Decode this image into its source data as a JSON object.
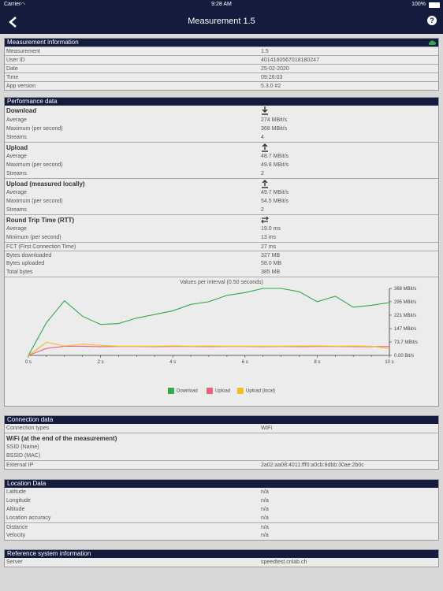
{
  "status_bar": {
    "carrier": "Carrier",
    "time": "9:28 AM",
    "battery": "100%"
  },
  "nav": {
    "title": "Measurement 1.5",
    "help": "?"
  },
  "measurement_info": {
    "title": "Measurement information",
    "rows": [
      {
        "k": "Measurement",
        "v": "1.5"
      },
      {
        "k": "User ID",
        "v": "4014160567018180247"
      },
      {
        "k": "Date",
        "v": "25-02-2020"
      },
      {
        "k": "Time",
        "v": "09:26:03"
      },
      {
        "k": "App version",
        "v": "5.3.0 #2"
      }
    ]
  },
  "performance": {
    "title": "Performance data",
    "download": {
      "title": "Download",
      "rows": [
        {
          "k": "Average",
          "v": "274 MBit/s"
        },
        {
          "k": "Maximum (per second)",
          "v": "368 MBit/s"
        },
        {
          "k": "Streams",
          "v": "4"
        }
      ]
    },
    "upload": {
      "title": "Upload",
      "rows": [
        {
          "k": "Average",
          "v": "48.7 MBit/s"
        },
        {
          "k": "Maximum (per second)",
          "v": "49.8 MBit/s"
        },
        {
          "k": "Streams",
          "v": "2"
        }
      ]
    },
    "upload_local": {
      "title": "Upload (measured locally)",
      "rows": [
        {
          "k": "Average",
          "v": "49.7 MBit/s"
        },
        {
          "k": "Maximum (per second)",
          "v": "54.5 MBit/s"
        },
        {
          "k": "Streams",
          "v": "2"
        }
      ]
    },
    "rtt": {
      "title": "Round Trip Time (RTT)",
      "rows": [
        {
          "k": "Average",
          "v": "19.0 ms"
        },
        {
          "k": "Minimum (per second)",
          "v": "13 ms"
        }
      ]
    },
    "fct": {
      "k": "FCT (First Connection Time)",
      "v": "27 ms"
    },
    "bytes": [
      {
        "k": "Bytes downloaded",
        "v": "327 MB"
      },
      {
        "k": "Bytes uploaded",
        "v": "58.0 MB"
      },
      {
        "k": "Total bytes",
        "v": "385 MB"
      }
    ]
  },
  "chart_data": {
    "type": "line",
    "title": "Values per interval (0.50 seconds)",
    "xlim": [
      0,
      10
    ],
    "x_ticks": [
      "0 s",
      "2 s",
      "4 s",
      "6 s",
      "8 s",
      "10 s"
    ],
    "x_tick_values": [
      0,
      2,
      4,
      6,
      8,
      10
    ],
    "ylim": [
      0,
      368
    ],
    "y_ticks": [
      "0.00 Bit/s",
      "73.7 MBit/s",
      "147 MBit/s",
      "221 MBit/s",
      "295 MBit/s",
      "368 MBit/s"
    ],
    "y_tick_values": [
      0,
      73.7,
      147,
      221,
      295,
      368
    ],
    "x": [
      0,
      0.5,
      1,
      1.5,
      2,
      2.5,
      3,
      3.5,
      4,
      4.5,
      5,
      5.5,
      6,
      6.5,
      7,
      7.5,
      8,
      8.5,
      9,
      9.5,
      10
    ],
    "series": [
      {
        "name": "Download",
        "color": "#2fa84f",
        "values": [
          0,
          180,
          300,
          215,
          170,
          175,
          205,
          225,
          245,
          280,
          295,
          330,
          345,
          368,
          368,
          350,
          295,
          325,
          265,
          275,
          290
        ]
      },
      {
        "name": "Upload",
        "color": "#f06080",
        "values": [
          0,
          38,
          50,
          50,
          48,
          49,
          49,
          48,
          49,
          49,
          48,
          49,
          49,
          48,
          49,
          48,
          49,
          49,
          48,
          48,
          49
        ]
      },
      {
        "name": "Upload (local)",
        "color": "#f0c020",
        "values": [
          0,
          72,
          52,
          62,
          55,
          50,
          50,
          50,
          52,
          50,
          51,
          50,
          50,
          50,
          50,
          51,
          52,
          50,
          51,
          50,
          38
        ]
      }
    ],
    "legend_position": "bottom"
  },
  "connection": {
    "title": "Connection data",
    "type": {
      "k": "Connection types",
      "v": "WiFi"
    },
    "wifi_title": "WiFi (at the end of the measurement)",
    "wifi_rows": [
      {
        "k": "SSID (Name)",
        "v": ""
      },
      {
        "k": "BSSID (MAC)",
        "v": ""
      }
    ],
    "ip": {
      "k": "External IP",
      "v": "2a02:aa08:4011:fff0:a0cb:8dbb:30ae:2b0c"
    }
  },
  "location": {
    "title": "Location Data",
    "rows": [
      {
        "k": "Latitude",
        "v": "n/a"
      },
      {
        "k": "Longitude",
        "v": "n/a"
      },
      {
        "k": "Altitude",
        "v": "n/a"
      },
      {
        "k": "Location accuracy",
        "v": "n/a"
      }
    ],
    "rows2": [
      {
        "k": "Distance",
        "v": "n/a"
      },
      {
        "k": "Velocity",
        "v": "n/a"
      }
    ]
  },
  "reference": {
    "title": "Reference system information",
    "server": {
      "k": "Server",
      "v": "speedtest.cnlab.ch"
    }
  },
  "icons": {
    "cloud": "cloud-icon",
    "download": "download-icon",
    "upload": "upload-icon",
    "rtt": "swap-arrows-icon",
    "back": "back-chevron-icon",
    "help": "help-icon"
  }
}
